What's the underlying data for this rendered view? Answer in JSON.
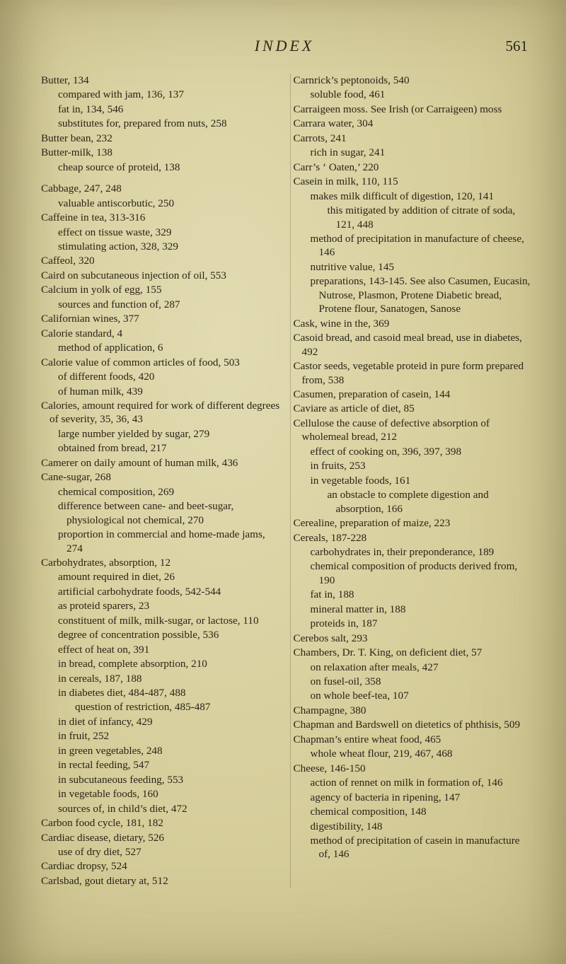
{
  "page": {
    "running_title": "INDEX",
    "page_number": "561",
    "background_color": "#d8d0a0",
    "text_color": "#2a2518",
    "font_family": "Times New Roman",
    "body_fontsize_pt": 11,
    "title_fontsize_pt": 16,
    "line_height": 1.28,
    "columns": 2
  },
  "left_column": [
    {
      "level": 0,
      "text": "Butter, 134"
    },
    {
      "level": 1,
      "text": "compared with jam, 136, 137"
    },
    {
      "level": 1,
      "text": "fat in, 134, 546"
    },
    {
      "level": 1,
      "text": "substitutes for, prepared from nuts, 258"
    },
    {
      "level": 0,
      "text": "Butter bean, 232"
    },
    {
      "level": 0,
      "text": "Butter-milk, 138"
    },
    {
      "level": 1,
      "text": "cheap source of proteid, 138"
    },
    {
      "level": -1,
      "text": ""
    },
    {
      "level": 0,
      "text": "Cabbage, 247, 248"
    },
    {
      "level": 1,
      "text": "valuable antiscorbutic, 250"
    },
    {
      "level": 0,
      "text": "Caffeine in tea, 313-316"
    },
    {
      "level": 1,
      "text": "effect on tissue waste, 329"
    },
    {
      "level": 1,
      "text": "stimulating action, 328, 329"
    },
    {
      "level": 0,
      "text": "Caffeol, 320"
    },
    {
      "level": 0,
      "text": "Caird on subcutaneous injection of oil, 553"
    },
    {
      "level": 0,
      "text": "Calcium in yolk of egg, 155"
    },
    {
      "level": 1,
      "text": "sources and function of, 287"
    },
    {
      "level": 0,
      "text": "Californian wines, 377"
    },
    {
      "level": 0,
      "text": "Calorie standard, 4"
    },
    {
      "level": 1,
      "text": "method of application, 6"
    },
    {
      "level": 0,
      "text": "Calorie value of common articles of food, 503"
    },
    {
      "level": 1,
      "text": "of different foods, 420"
    },
    {
      "level": 1,
      "text": "of human milk, 439"
    },
    {
      "level": 0,
      "text": "Calories, amount required for work of different degrees of severity, 35, 36, 43"
    },
    {
      "level": 1,
      "text": "large number yielded by sugar, 279"
    },
    {
      "level": 1,
      "text": "obtained from bread, 217"
    },
    {
      "level": 0,
      "text": "Camerer on daily amount of human milk, 436"
    },
    {
      "level": 0,
      "text": "Cane-sugar, 268"
    },
    {
      "level": 1,
      "text": "chemical composition, 269"
    },
    {
      "level": 1,
      "text": "difference between cane- and beet-sugar, physiological not chemical, 270"
    },
    {
      "level": 1,
      "text": "proportion in commercial and home-made jams, 274"
    },
    {
      "level": 0,
      "text": "Carbohydrates, absorption, 12"
    },
    {
      "level": 1,
      "text": "amount required in diet, 26"
    },
    {
      "level": 1,
      "text": "artificial carbohydrate foods, 542-544"
    },
    {
      "level": 1,
      "text": "as proteid sparers, 23"
    },
    {
      "level": 1,
      "text": "constituent of milk, milk-sugar, or lactose, 110"
    },
    {
      "level": 1,
      "text": "degree of concentration possible, 536"
    },
    {
      "level": 1,
      "text": "effect of heat on, 391"
    },
    {
      "level": 1,
      "text": "in bread, complete absorption, 210"
    },
    {
      "level": 1,
      "text": "in cereals, 187, 188"
    },
    {
      "level": 1,
      "text": "in diabetes diet, 484-487, 488"
    },
    {
      "level": 2,
      "text": "question of restriction, 485-487"
    },
    {
      "level": 1,
      "text": "in diet of infancy, 429"
    },
    {
      "level": 1,
      "text": "in fruit, 252"
    },
    {
      "level": 1,
      "text": "in green vegetables, 248"
    },
    {
      "level": 1,
      "text": "in rectal feeding, 547"
    },
    {
      "level": 1,
      "text": "in subcutaneous feeding, 553"
    },
    {
      "level": 1,
      "text": "in vegetable foods, 160"
    },
    {
      "level": 1,
      "text": "sources of, in child’s diet, 472"
    },
    {
      "level": 0,
      "text": "Carbon food cycle, 181, 182"
    },
    {
      "level": 0,
      "text": "Cardiac disease, dietary, 526"
    },
    {
      "level": 1,
      "text": "use of dry diet, 527"
    },
    {
      "level": 0,
      "text": "Cardiac dropsy, 524"
    },
    {
      "level": 0,
      "text": "Carlsbad, gout dietary at, 512"
    }
  ],
  "right_column": [
    {
      "level": 0,
      "text": "Carnrick’s peptonoids, 540"
    },
    {
      "level": 1,
      "text": "soluble food, 461"
    },
    {
      "level": 0,
      "text": "Carraigeen moss.  See Irish (or Carraigeen) moss"
    },
    {
      "level": 0,
      "text": "Carrara water, 304"
    },
    {
      "level": 0,
      "text": "Carrots, 241"
    },
    {
      "level": 1,
      "text": "rich in sugar, 241"
    },
    {
      "level": 0,
      "text": "Carr’s ‘ Oaten,’ 220"
    },
    {
      "level": 0,
      "text": "Casein in milk, 110, 115"
    },
    {
      "level": 1,
      "text": "makes milk difficult of digestion, 120, 141"
    },
    {
      "level": 2,
      "text": "this mitigated by addition of citrate of soda, 121, 448"
    },
    {
      "level": 1,
      "text": "method of precipitation in manufacture of cheese, 146"
    },
    {
      "level": 1,
      "text": "nutritive value, 145"
    },
    {
      "level": 1,
      "text": "preparations, 143-145.  See also Casumen, Eucasin, Nutrose, Plasmon, Protene Diabetic bread, Protene flour, Sanatogen, Sanose"
    },
    {
      "level": 0,
      "text": "Cask, wine in the, 369"
    },
    {
      "level": 0,
      "text": "Casoid bread, and casoid meal bread, use in diabetes, 492"
    },
    {
      "level": 0,
      "text": "Castor seeds, vegetable proteid in pure form prepared from, 538"
    },
    {
      "level": 0,
      "text": "Casumen, preparation of casein, 144"
    },
    {
      "level": 0,
      "text": "Caviare as article of diet, 85"
    },
    {
      "level": 0,
      "text": "Cellulose the cause of defective absorption of wholemeal bread, 212"
    },
    {
      "level": 1,
      "text": "effect of cooking on, 396, 397, 398"
    },
    {
      "level": 1,
      "text": "in fruits, 253"
    },
    {
      "level": 1,
      "text": "in vegetable foods, 161"
    },
    {
      "level": 2,
      "text": "an obstacle to complete digestion and absorption, 166"
    },
    {
      "level": 0,
      "text": "Cerealine, preparation of maize, 223"
    },
    {
      "level": 0,
      "text": "Cereals, 187-228"
    },
    {
      "level": 1,
      "text": "carbohydrates in, their preponderance, 189"
    },
    {
      "level": 1,
      "text": "chemical composition of products derived from, 190"
    },
    {
      "level": 1,
      "text": "fat in, 188"
    },
    {
      "level": 1,
      "text": "mineral matter in, 188"
    },
    {
      "level": 1,
      "text": "proteids in, 187"
    },
    {
      "level": 0,
      "text": "Cerebos salt, 293"
    },
    {
      "level": 0,
      "text": "Chambers, Dr. T. King, on deficient diet, 57"
    },
    {
      "level": 1,
      "text": "on relaxation after meals, 427"
    },
    {
      "level": 1,
      "text": "on fusel-oil, 358"
    },
    {
      "level": 1,
      "text": "on whole beef-tea, 107"
    },
    {
      "level": 0,
      "text": "Champagne, 380"
    },
    {
      "level": 0,
      "text": "Chapman and Bardswell on dietetics of phthisis, 509"
    },
    {
      "level": 0,
      "text": "Chapman’s entire wheat food, 465"
    },
    {
      "level": 1,
      "text": "whole wheat flour, 219, 467, 468"
    },
    {
      "level": 0,
      "text": "Cheese, 146-150"
    },
    {
      "level": 1,
      "text": "action of rennet on milk in formation of, 146"
    },
    {
      "level": 1,
      "text": "agency of bacteria in ripening, 147"
    },
    {
      "level": 1,
      "text": "chemical composition, 148"
    },
    {
      "level": 1,
      "text": "digestibility, 148"
    },
    {
      "level": 1,
      "text": "method of precipitation of casein in manufacture of, 146"
    }
  ]
}
